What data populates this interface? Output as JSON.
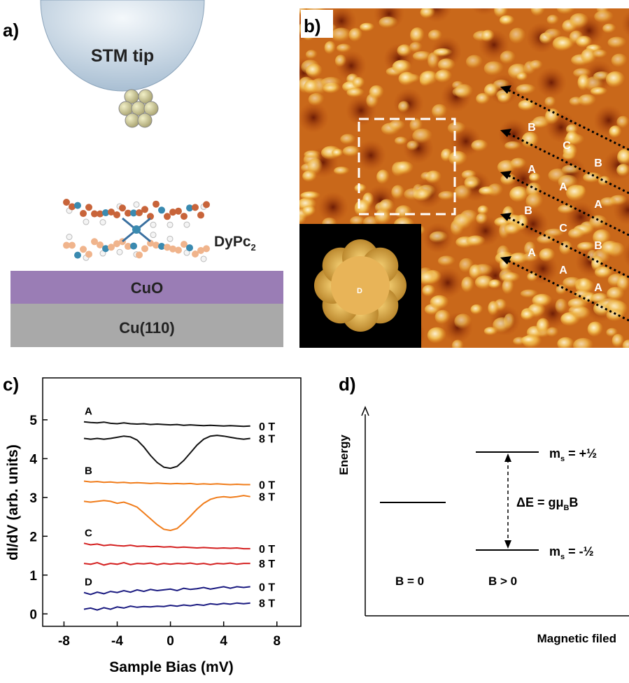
{
  "panel_a": {
    "label": "a)",
    "tip": "STM tip",
    "molecule": {
      "main": "DyPc",
      "sub": "2"
    },
    "layer_top": "CuO",
    "layer_bottom": "Cu(110)"
  },
  "panel_b": {
    "label": "b)",
    "site_labels": [
      "B",
      "C",
      "B",
      "A",
      "A",
      "A",
      "B",
      "C",
      "B",
      "A",
      "A",
      "A"
    ],
    "inset_label": "D"
  },
  "chart_data": {
    "type": "line",
    "panel_label": "c)",
    "x_label": "Sample Bias  (mV)",
    "y_label": "dI/dV (arb. units)",
    "xlim": [
      -9.6,
      9.8
    ],
    "ylim": [
      -0.32,
      6.08
    ],
    "xticks": [
      -8,
      -4,
      0,
      4,
      8
    ],
    "yticks": [
      0,
      1,
      2,
      3,
      4,
      5
    ],
    "group_labels": [
      "A",
      "B",
      "C",
      "D"
    ],
    "x": [
      -6.5,
      -6,
      -5.5,
      -5,
      -4.5,
      -4,
      -3.5,
      -3,
      -2.5,
      -2,
      -1.5,
      -1,
      -0.5,
      0,
      0.5,
      1,
      1.5,
      2,
      2.5,
      3,
      3.5,
      4,
      4.5,
      5,
      5.5,
      6
    ],
    "series": [
      {
        "name": "0 T",
        "color": "#111111",
        "values": [
          4.95,
          4.93,
          4.92,
          4.94,
          4.91,
          4.9,
          4.92,
          4.9,
          4.89,
          4.9,
          4.88,
          4.89,
          4.88,
          4.87,
          4.88,
          4.86,
          4.87,
          4.86,
          4.85,
          4.86,
          4.85,
          4.84,
          4.85,
          4.84,
          4.83,
          4.84
        ]
      },
      {
        "name": "8 T",
        "color": "#111111",
        "values": [
          4.52,
          4.5,
          4.52,
          4.5,
          4.52,
          4.55,
          4.58,
          4.56,
          4.48,
          4.3,
          4.08,
          3.9,
          3.78,
          3.75,
          3.8,
          3.95,
          4.15,
          4.35,
          4.5,
          4.58,
          4.6,
          4.58,
          4.55,
          4.52,
          4.5,
          4.52
        ]
      },
      {
        "name": "0 T",
        "color": "#f07c1a",
        "values": [
          3.42,
          3.4,
          3.41,
          3.39,
          3.4,
          3.38,
          3.39,
          3.37,
          3.38,
          3.37,
          3.36,
          3.37,
          3.36,
          3.35,
          3.36,
          3.35,
          3.36,
          3.34,
          3.35,
          3.34,
          3.35,
          3.34,
          3.33,
          3.34,
          3.33,
          3.33
        ]
      },
      {
        "name": "8 T",
        "color": "#f07c1a",
        "values": [
          2.9,
          2.88,
          2.9,
          2.92,
          2.9,
          2.85,
          2.88,
          2.82,
          2.75,
          2.6,
          2.45,
          2.3,
          2.18,
          2.15,
          2.2,
          2.35,
          2.52,
          2.7,
          2.85,
          2.95,
          3.0,
          3.02,
          3.0,
          3.02,
          3.05,
          3.02
        ]
      },
      {
        "name": "0 T",
        "color": "#d42020",
        "values": [
          1.82,
          1.78,
          1.8,
          1.76,
          1.78,
          1.76,
          1.75,
          1.77,
          1.74,
          1.75,
          1.73,
          1.74,
          1.72,
          1.73,
          1.71,
          1.72,
          1.71,
          1.7,
          1.71,
          1.7,
          1.69,
          1.7,
          1.69,
          1.7,
          1.68,
          1.68
        ]
      },
      {
        "name": "8 T",
        "color": "#d42020",
        "values": [
          1.3,
          1.28,
          1.32,
          1.26,
          1.3,
          1.28,
          1.32,
          1.27,
          1.3,
          1.29,
          1.31,
          1.27,
          1.3,
          1.28,
          1.3,
          1.29,
          1.31,
          1.28,
          1.3,
          1.27,
          1.3,
          1.29,
          1.31,
          1.28,
          1.3,
          1.3
        ]
      },
      {
        "name": "0 T",
        "color": "#1a1a80",
        "values": [
          0.55,
          0.5,
          0.56,
          0.52,
          0.58,
          0.55,
          0.6,
          0.56,
          0.62,
          0.58,
          0.63,
          0.6,
          0.62,
          0.64,
          0.6,
          0.66,
          0.63,
          0.65,
          0.68,
          0.64,
          0.67,
          0.7,
          0.66,
          0.7,
          0.68,
          0.7
        ]
      },
      {
        "name": "8 T",
        "color": "#1a1a80",
        "values": [
          0.12,
          0.15,
          0.1,
          0.16,
          0.12,
          0.18,
          0.15,
          0.2,
          0.17,
          0.19,
          0.18,
          0.2,
          0.19,
          0.22,
          0.2,
          0.23,
          0.21,
          0.24,
          0.22,
          0.26,
          0.24,
          0.27,
          0.25,
          0.28,
          0.26,
          0.28
        ]
      }
    ]
  },
  "panel_d": {
    "label": "d)",
    "y_axis": "Energy",
    "x_axis": "Magnetic filed",
    "left_field": "B = 0",
    "right_field": "B > 0",
    "splitting": {
      "pre": "ΔE = gμ",
      "sub": "B",
      "post": "B"
    },
    "upper": {
      "main": "m",
      "sub": "s",
      "post": " = +½"
    },
    "lower": {
      "main": "m",
      "sub": "s",
      "post": " = -½"
    }
  }
}
